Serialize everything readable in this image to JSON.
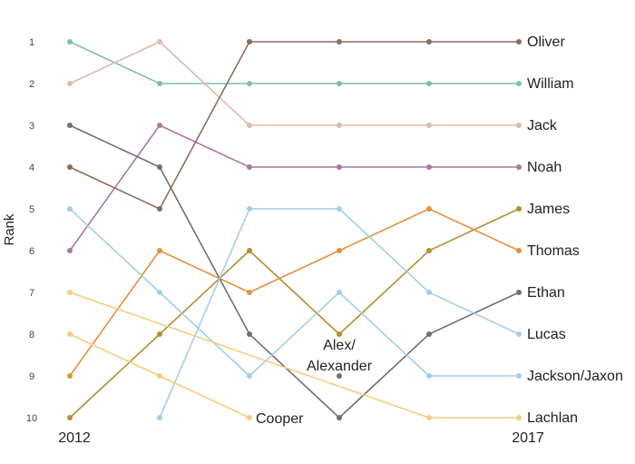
{
  "chart_data": {
    "type": "line",
    "title": "",
    "ylabel": "Rank",
    "xlabel": "",
    "x": [
      2012,
      2013,
      2014,
      2015,
      2016,
      2017
    ],
    "x_tick_labels": [
      "2012",
      "2017"
    ],
    "y_ticks": [
      "1",
      "2",
      "3",
      "4",
      "5",
      "6",
      "7",
      "8",
      "9",
      "10"
    ],
    "ylim": [
      1,
      10
    ],
    "y_inverted": true,
    "grid": false,
    "legend": "none",
    "series": [
      {
        "name": "Oliver",
        "color": "#8c6d5c",
        "values": [
          null,
          null,
          1,
          1,
          1,
          1
        ]
      },
      {
        "name": "William",
        "color": "#7dbfae",
        "values": [
          1,
          2,
          2,
          2,
          2,
          2
        ]
      },
      {
        "name": "Jack",
        "color": "#e0b8ad",
        "values": [
          2,
          1,
          3,
          3,
          3,
          3
        ]
      },
      {
        "name": "Noah",
        "color": "#a779a3",
        "values": [
          6,
          3,
          4,
          4,
          4,
          4
        ]
      },
      {
        "name": "James",
        "color": "#b1902f",
        "values": [
          10,
          8,
          6,
          8,
          6,
          5
        ]
      },
      {
        "name": "Thomas",
        "color": "#e68f3e",
        "values": [
          9,
          6,
          7,
          6,
          5,
          6
        ]
      },
      {
        "name": "Ethan",
        "color": "#707070",
        "values": [
          3,
          4,
          8,
          10,
          8,
          7
        ]
      },
      {
        "name": "Lucas",
        "color": "#a3cfe3",
        "values": [
          null,
          10,
          5,
          5,
          7,
          8
        ]
      },
      {
        "name": "Jackson/Jaxon",
        "color": "#a3cfe3",
        "values": [
          5,
          7,
          9,
          7,
          9,
          9
        ]
      },
      {
        "name": "Lachlan",
        "color": "#f7cc7f",
        "values": [
          7,
          null,
          null,
          null,
          10,
          10
        ]
      },
      {
        "name": "Cooper",
        "color": "#f7cc7f",
        "values": [
          8,
          9,
          10,
          null,
          null,
          null
        ]
      },
      {
        "name": "Alex/Alexander",
        "color": "#707070",
        "values": [
          null,
          null,
          null,
          9,
          null,
          null
        ]
      },
      {
        "name": "",
        "color": "#8c6d5c",
        "values": [
          4,
          5,
          1,
          null,
          null,
          null
        ]
      }
    ],
    "annotations": [
      {
        "text": "Cooper",
        "series": "Cooper",
        "x": 2014,
        "y": 10
      },
      {
        "text": "Alex/",
        "x": 2015,
        "y": 8.25
      },
      {
        "text": "Alexander",
        "x": 2015,
        "y": 8.75
      }
    ]
  }
}
